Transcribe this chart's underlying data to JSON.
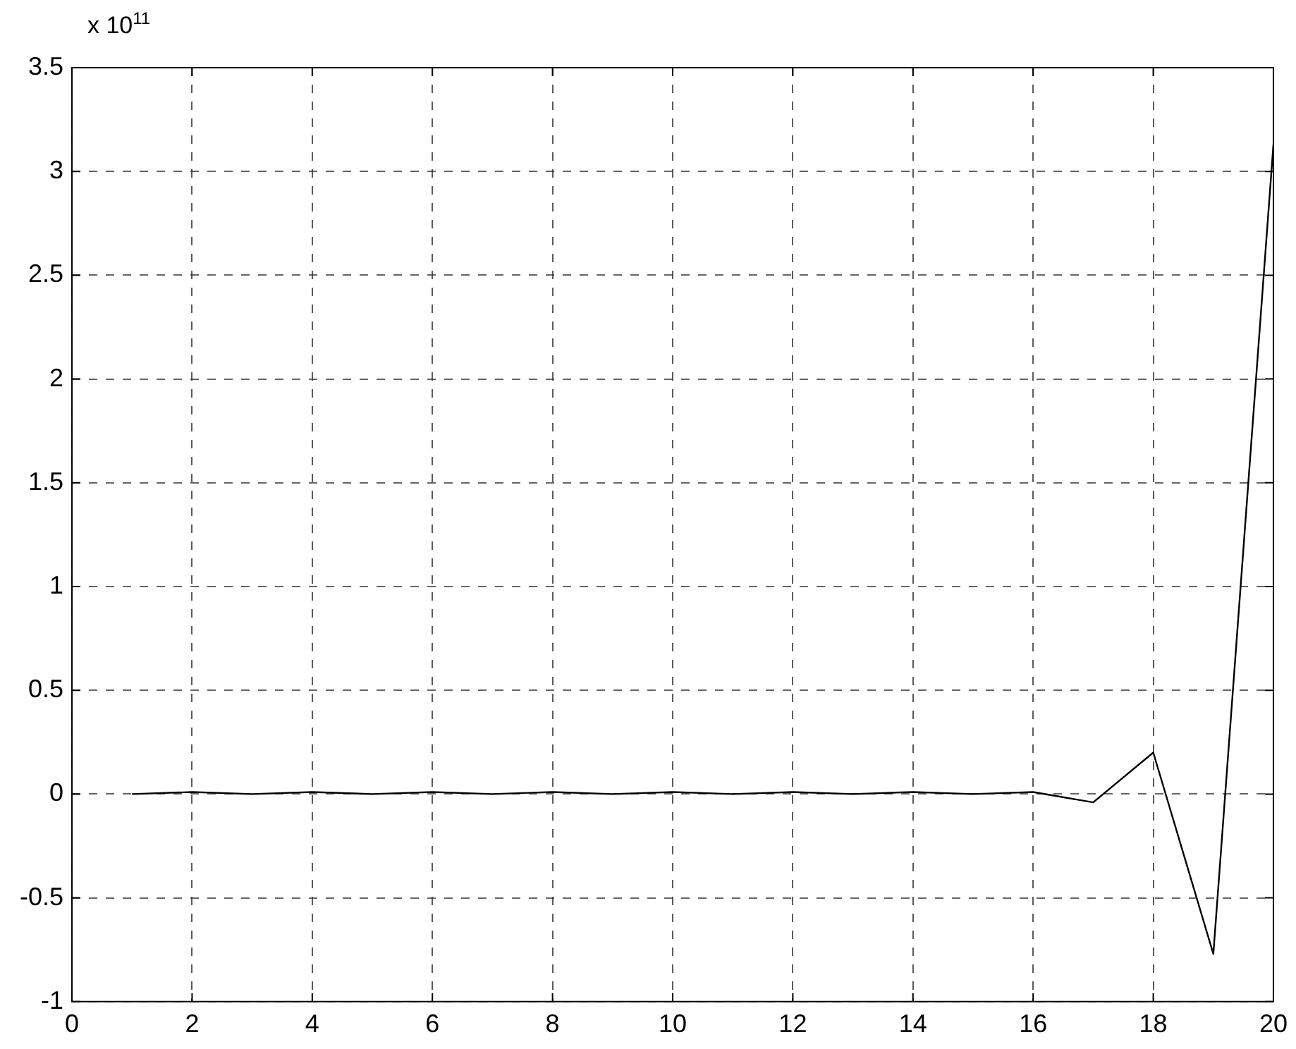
{
  "chart_data": {
    "type": "line",
    "x": [
      1,
      2,
      3,
      4,
      5,
      6,
      7,
      8,
      9,
      10,
      11,
      12,
      13,
      14,
      15,
      16,
      17,
      18,
      19,
      20
    ],
    "series": [
      {
        "color": "#000000",
        "values": [
          0,
          0.01,
          0,
          0.01,
          0,
          0.01,
          0,
          0.01,
          0,
          0.01,
          0,
          0.01,
          0,
          0.01,
          0,
          0.01,
          -0.04,
          0.2,
          -0.77,
          3.13
        ]
      }
    ],
    "xlim": [
      0,
      20
    ],
    "xticks": [
      0,
      2,
      4,
      6,
      8,
      10,
      12,
      14,
      16,
      18,
      20
    ],
    "ylim": [
      -1,
      3.5
    ],
    "yticks": [
      -1,
      -0.5,
      0,
      0.5,
      1,
      1.5,
      2,
      2.5,
      3,
      3.5
    ],
    "annotations": [
      "x 10$^{11}$"
    ],
    "grid": true,
    "legend": false,
    "marker": "none",
    "line_style": "solid"
  }
}
